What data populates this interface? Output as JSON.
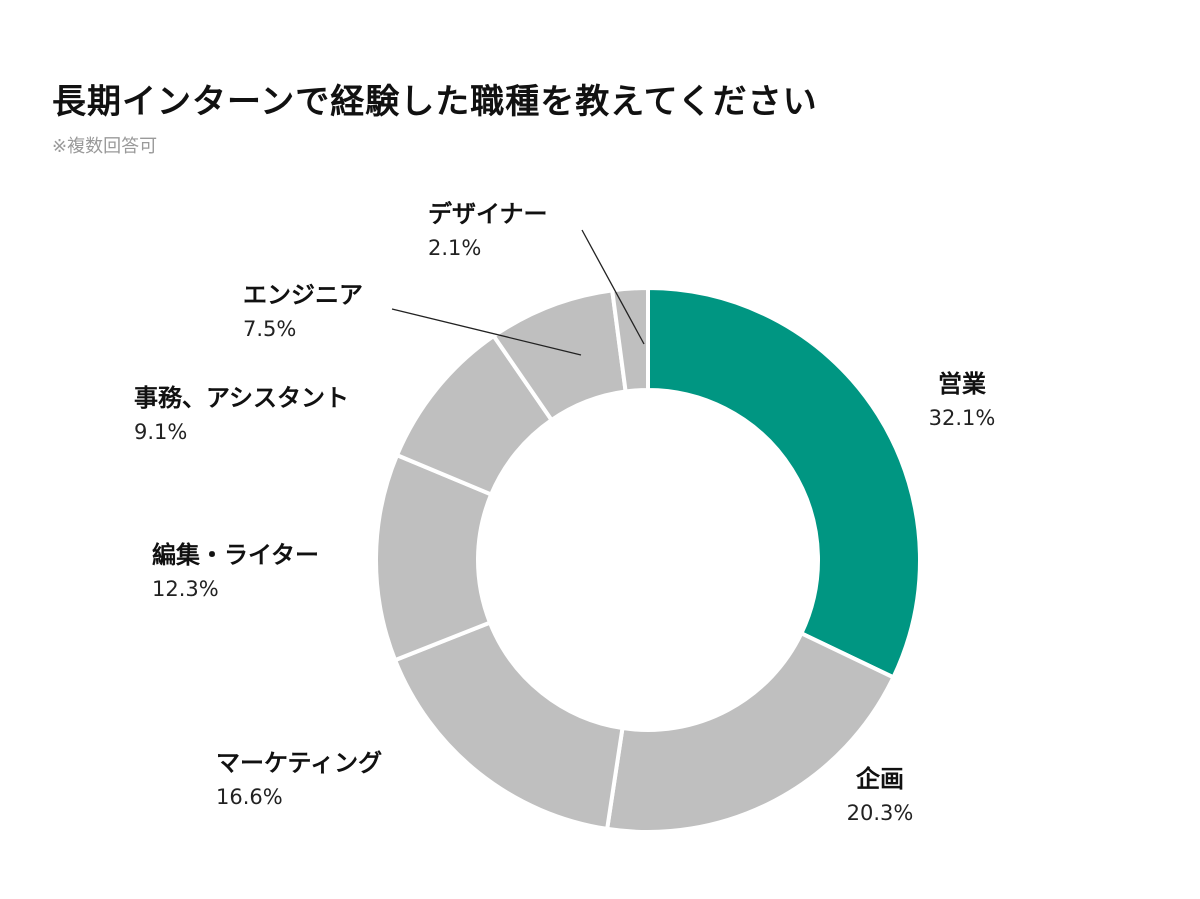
{
  "title": "長期インターンで経験した職種を教えてください",
  "subtitle": "※複数回答可",
  "chart_data": {
    "type": "pie",
    "variant": "donut",
    "unit": "%",
    "slices": [
      {
        "label": "営業",
        "value": 32.1,
        "value_text": "32.1%",
        "color": "#009682"
      },
      {
        "label": "企画",
        "value": 20.3,
        "value_text": "20.3%",
        "color": "#bfbfbf"
      },
      {
        "label": "マーケティング",
        "value": 16.6,
        "value_text": "16.6%",
        "color": "#bfbfbf"
      },
      {
        "label": "編集・ライター",
        "value": 12.3,
        "value_text": "12.3%",
        "color": "#bfbfbf"
      },
      {
        "label": "事務、アシスタント",
        "value": 9.1,
        "value_text": "9.1%",
        "color": "#bfbfbf"
      },
      {
        "label": "エンジニア",
        "value": 7.5,
        "value_text": "7.5%",
        "color": "#bfbfbf"
      },
      {
        "label": "デザイナー",
        "value": 2.1,
        "value_text": "2.1%",
        "color": "#bfbfbf"
      }
    ],
    "start_angle": "12 o'clock",
    "direction": "clockwise",
    "legend": "none (labels placed beside slices)"
  }
}
